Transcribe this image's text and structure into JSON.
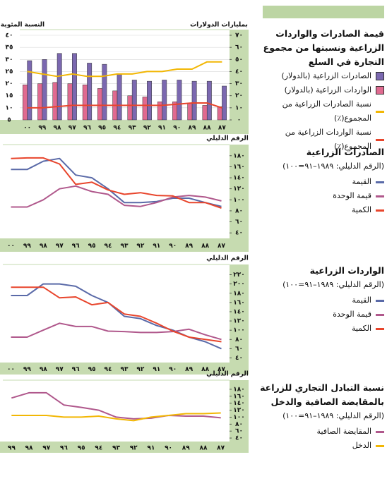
{
  "chart_data": [
    {
      "type": "bar",
      "title": "قيمة الصادرات والواردات الزراعية ونسبتها من مجموع التجارة في السلع",
      "ylabel": "النسبة المئوية",
      "y2label": "بمليارات الدولارات",
      "categories": [
        "٠٠",
        "٩٩",
        "٩٨",
        "٩٧",
        "٩٦",
        "٩٥",
        "٩٤",
        "٩٣",
        "٩٢",
        "٩١",
        "٩٠",
        "٨٩",
        "٨٨",
        "٨٧"
      ],
      "ylim": [
        5,
        40
      ],
      "yticks": [
        {
          "value": 5,
          "label": "٥"
        },
        {
          "value": 10,
          "label": "١٠"
        },
        {
          "value": 15,
          "label": "١٥"
        },
        {
          "value": 20,
          "label": "٢٠"
        },
        {
          "value": 25,
          "label": "٢٥"
        },
        {
          "value": 30,
          "label": "٣٠"
        },
        {
          "value": 35,
          "label": "٣٥"
        },
        {
          "value": 40,
          "label": "٤٠"
        }
      ],
      "y2lim": [
        0,
        70
      ],
      "y2ticks": [
        {
          "value": 0,
          "label": "٠"
        },
        {
          "value": 10,
          "label": "١٠"
        },
        {
          "value": 20,
          "label": "٢٠"
        },
        {
          "value": 30,
          "label": "٣٠"
        },
        {
          "value": 40,
          "label": "٤٠"
        },
        {
          "value": 50,
          "label": "٥٠"
        },
        {
          "value": 60,
          "label": "٦٠"
        },
        {
          "value": 70,
          "label": "٧٠"
        }
      ],
      "grid": true,
      "series": [
        {
          "name": "الصادرات الزراعية (بالدولار)",
          "type": "bar",
          "axis": "y2",
          "color": "#7b68b0",
          "values": [
            49,
            50,
            55,
            55,
            47,
            46,
            38,
            33,
            32,
            33,
            33,
            32,
            32,
            28
          ]
        },
        {
          "name": "الواردات الزراعية (بالدولار)",
          "type": "bar",
          "axis": "y2",
          "color": "#e06a90",
          "values": [
            29,
            30,
            31,
            30,
            29,
            26,
            24,
            20,
            19,
            15,
            15,
            14,
            12,
            11
          ]
        },
        {
          "name": "نسبة الصادرات الزراعية من المجموع(٪)",
          "type": "line",
          "color": "#f2b705",
          "values": [
            25,
            24,
            23,
            24,
            23,
            23,
            24,
            24,
            25,
            25,
            26,
            26,
            29,
            29
          ]
        },
        {
          "name": "نسبة الواردات الزراعية من المجموع(٪)",
          "type": "line",
          "color": "#e8452c",
          "values": [
            10,
            10,
            10.5,
            11,
            11,
            11,
            11,
            11,
            11,
            11,
            11.5,
            12,
            12,
            10
          ]
        }
      ]
    },
    {
      "type": "line",
      "title": "الصادرات الزراعية",
      "subtitle": "(الرقم الدليلي: ١٩٨٩–٩١=١٠٠)",
      "ylabel": "الرقم الدليلي",
      "categories": [
        "٠٠",
        "٩٩",
        "٩٨",
        "٩٧",
        "٩٦",
        "٩٥",
        "٩٤",
        "٩٣",
        "٩٢",
        "٩١",
        "٩٠",
        "٨٩",
        "٨٨",
        "٨٧"
      ],
      "ylim": [
        30,
        190
      ],
      "yticks": [
        {
          "value": 40,
          "label": "٤٠"
        },
        {
          "value": 60,
          "label": "٦٠"
        },
        {
          "value": 80,
          "label": "٨٠"
        },
        {
          "value": 100,
          "label": "١٠٠"
        },
        {
          "value": 120,
          "label": "١٢٠"
        },
        {
          "value": 140,
          "label": "١٤٠"
        },
        {
          "value": 160,
          "label": "١٦٠"
        },
        {
          "value": 180,
          "label": "١٨٠"
        }
      ],
      "series": [
        {
          "name": "القيمة",
          "color": "#5a6aa8",
          "values": [
            155,
            155,
            170,
            175,
            145,
            140,
            120,
            95,
            95,
            97,
            103,
            103,
            95,
            88
          ]
        },
        {
          "name": "قيمة الوحدة",
          "color": "#b0588c",
          "values": [
            87,
            87,
            100,
            120,
            125,
            115,
            110,
            90,
            88,
            95,
            105,
            108,
            105,
            98
          ]
        },
        {
          "name": "الكمية",
          "color": "#e8452c",
          "values": [
            175,
            176,
            176,
            165,
            128,
            132,
            118,
            110,
            113,
            108,
            107,
            95,
            95,
            85
          ]
        }
      ]
    },
    {
      "type": "line",
      "title": "الواردات الزراعية",
      "subtitle": "(الرقم الدليلي: ١٩٨٩–٩١=١٠٠)",
      "ylabel": "الرقم الدليلي",
      "categories": [
        "٠٠",
        "٩٩",
        "٩٨",
        "٩٧",
        "٩٦",
        "٩٥",
        "٩٤",
        "٩٣",
        "٩٢",
        "٩١",
        "٩٠",
        "٨٩",
        "٨٨",
        "٨٧"
      ],
      "ylim": [
        30,
        230
      ],
      "yticks": [
        {
          "value": 40,
          "label": "٤٠"
        },
        {
          "value": 60,
          "label": "٦٠"
        },
        {
          "value": 80,
          "label": "٨٠"
        },
        {
          "value": 100,
          "label": "١٠٠"
        },
        {
          "value": 120,
          "label": "١٢٠"
        },
        {
          "value": 140,
          "label": "١٤٠"
        },
        {
          "value": 160,
          "label": "١٦٠"
        },
        {
          "value": 180,
          "label": "١٨٠"
        },
        {
          "value": 200,
          "label": "٢٠٠"
        },
        {
          "value": 220,
          "label": "٢٢٠"
        }
      ],
      "series": [
        {
          "name": "القيمة",
          "color": "#5a6aa8",
          "values": [
            175,
            175,
            200,
            200,
            195,
            175,
            160,
            130,
            125,
            110,
            100,
            85,
            75,
            60
          ]
        },
        {
          "name": "قيمة الوحدة",
          "color": "#b0588c",
          "values": [
            85,
            85,
            100,
            115,
            108,
            108,
            98,
            97,
            95,
            95,
            97,
            102,
            90,
            80
          ]
        },
        {
          "name": "الكمية",
          "color": "#e8452c",
          "values": [
            193,
            193,
            193,
            170,
            172,
            155,
            160,
            135,
            130,
            115,
            98,
            85,
            80,
            75
          ]
        }
      ]
    },
    {
      "type": "line",
      "title": "نسبة التبادل التجاري للزراعة بالمقايضة الصافية والدخل",
      "subtitle": "(الرقم الدليلي: ١٩٨٩–٩١=١٠٠)",
      "ylabel": "الرقم الدليلي",
      "categories": [
        "٩٩",
        "٩٨",
        "٩٧",
        "٩٦",
        "٩٥",
        "٩٤",
        "٩٣",
        "٩٢",
        "٩١",
        "٩٠",
        "٨٩",
        "٨٨",
        "٨٧"
      ],
      "ylim": [
        30,
        190
      ],
      "yticks": [
        {
          "value": 40,
          "label": "٤٠"
        },
        {
          "value": 60,
          "label": "٦٠"
        },
        {
          "value": 80,
          "label": "٨٠"
        },
        {
          "value": 100,
          "label": "١٠٠"
        },
        {
          "value": 120,
          "label": "١٢٠"
        },
        {
          "value": 140,
          "label": "١٤٠"
        },
        {
          "value": 160,
          "label": "١٦٠"
        },
        {
          "value": 180,
          "label": "١٨٠"
        }
      ],
      "series": [
        {
          "name": "المقايضة الصافية",
          "color": "#b0588c",
          "values": [
            155,
            170,
            170,
            135,
            128,
            120,
            100,
            95,
            97,
            105,
            103,
            103,
            98
          ]
        },
        {
          "name": "الدخل",
          "color": "#f2b705",
          "values": [
            105,
            105,
            105,
            100,
            100,
            103,
            95,
            90,
            100,
            105,
            110,
            110,
            112
          ]
        }
      ]
    }
  ]
}
